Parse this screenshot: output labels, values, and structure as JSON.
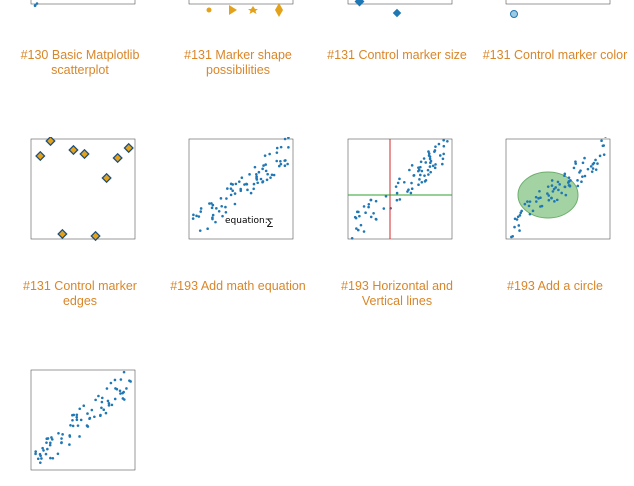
{
  "gallery": {
    "items": [
      {
        "caption": "#130 Basic Matplotlib scatterplot"
      },
      {
        "caption": "#131 Marker shape possibilities"
      },
      {
        "caption": "#131 Control marker size"
      },
      {
        "caption": "#131 Control marker color"
      },
      {
        "caption": "#131 Control marker edges"
      },
      {
        "caption": "#193 Add math equation",
        "equation": "equation:"
      },
      {
        "caption": "#193 Horizontal and Vertical lines"
      },
      {
        "caption": "#193 Add a circle"
      }
    ]
  }
}
